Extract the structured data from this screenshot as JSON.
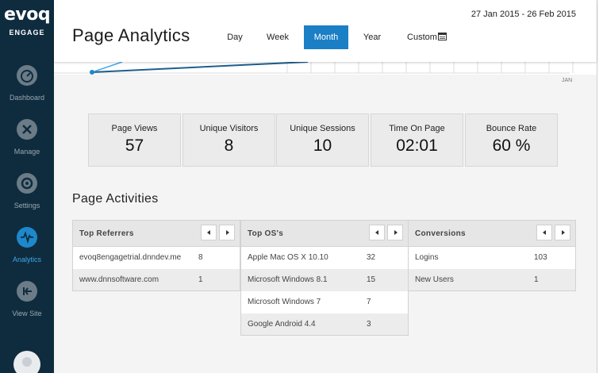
{
  "brand": {
    "logo": "evoq",
    "product": "ENGAGE"
  },
  "sidebar": {
    "items": [
      {
        "label": "Dashboard",
        "icon": "gauge-icon"
      },
      {
        "label": "Manage",
        "icon": "tools-icon"
      },
      {
        "label": "Settings",
        "icon": "gear-icon"
      },
      {
        "label": "Analytics",
        "icon": "pulse-icon",
        "active": true
      },
      {
        "label": "View Site",
        "icon": "exit-arrow-icon"
      }
    ]
  },
  "header": {
    "title": "Page Analytics",
    "date_range": "27 Jan 2015 - 26 Feb 2015",
    "periods": [
      "Day",
      "Week",
      "Month",
      "Year",
      "Custom"
    ],
    "active_period": "Month"
  },
  "chart": {
    "x_label": "JAN",
    "line_color": "#1d5e8e"
  },
  "metrics": [
    {
      "label": "Page Views",
      "value": "57"
    },
    {
      "label": "Unique Visitors",
      "value": "8"
    },
    {
      "label": "Unique Sessions",
      "value": "10"
    },
    {
      "label": "Time On Page",
      "value": "02:01"
    },
    {
      "label": "Bounce Rate",
      "value": "60 %"
    }
  ],
  "activities": {
    "title": "Page Activities",
    "referrers": {
      "title": "Top Referrers",
      "rows": [
        {
          "name": "evoq8engagetrial.dnndev.me",
          "count": "8"
        },
        {
          "name": "www.dnnsoftware.com",
          "count": "1"
        }
      ]
    },
    "os": {
      "title": "Top OS's",
      "rows": [
        {
          "name": "Apple Mac OS X 10.10",
          "count": "32"
        },
        {
          "name": "Microsoft Windows 8.1",
          "count": "15"
        },
        {
          "name": "Microsoft Windows 7",
          "count": "7"
        },
        {
          "name": "Google Android 4.4",
          "count": "3"
        }
      ]
    },
    "conversions": {
      "title": "Conversions",
      "rows": [
        {
          "name": "Logins",
          "count": "103"
        },
        {
          "name": "New Users",
          "count": "1"
        }
      ]
    }
  },
  "colors": {
    "sidebar": "#0f2c3f",
    "accent": "#1a7fc4",
    "active_nav": "#3ea8e8"
  }
}
